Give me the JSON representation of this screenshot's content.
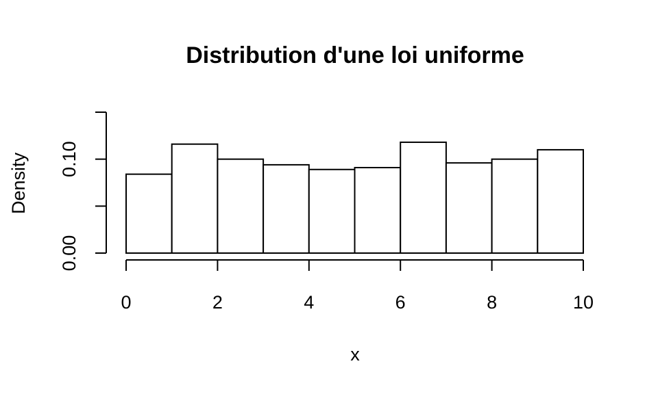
{
  "chart_data": {
    "type": "bar",
    "title": "Distribution d'une loi uniforme",
    "xlabel": "x",
    "ylabel": "Density",
    "bins": [
      {
        "x0": 0,
        "x1": 1,
        "density": 0.084
      },
      {
        "x0": 1,
        "x1": 2,
        "density": 0.116
      },
      {
        "x0": 2,
        "x1": 3,
        "density": 0.1
      },
      {
        "x0": 3,
        "x1": 4,
        "density": 0.094
      },
      {
        "x0": 4,
        "x1": 5,
        "density": 0.089
      },
      {
        "x0": 5,
        "x1": 6,
        "density": 0.091
      },
      {
        "x0": 6,
        "x1": 7,
        "density": 0.118
      },
      {
        "x0": 7,
        "x1": 8,
        "density": 0.096
      },
      {
        "x0": 8,
        "x1": 9,
        "density": 0.1
      },
      {
        "x0": 9,
        "x1": 10,
        "density": 0.11
      }
    ],
    "xlim": [
      0,
      10
    ],
    "ylim": [
      0,
      0.15
    ],
    "xticks": [
      {
        "value": 0,
        "label": "0"
      },
      {
        "value": 2,
        "label": "2"
      },
      {
        "value": 4,
        "label": "4"
      },
      {
        "value": 6,
        "label": "6"
      },
      {
        "value": 8,
        "label": "8"
      },
      {
        "value": 10,
        "label": "10"
      }
    ],
    "yticks": [
      {
        "value": 0.0,
        "label": "0.00"
      },
      {
        "value": 0.05,
        "label": ""
      },
      {
        "value": 0.1,
        "label": "0.10"
      },
      {
        "value": 0.15,
        "label": ""
      }
    ],
    "grid": false,
    "legend": "none"
  }
}
